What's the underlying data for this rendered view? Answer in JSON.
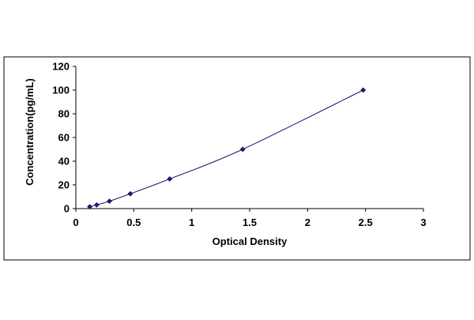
{
  "chart_data": {
    "type": "scatter",
    "title": "",
    "xlabel": "Optical Density",
    "ylabel": "Concentration(pg/mL)",
    "xlim": [
      0,
      3
    ],
    "ylim": [
      0,
      120
    ],
    "xticks": [
      0,
      0.5,
      1,
      1.5,
      2,
      2.5,
      3
    ],
    "xtick_labels": [
      "0",
      "0.5",
      "1",
      "1.5",
      "2",
      "2.5",
      "3"
    ],
    "yticks": [
      0,
      20,
      40,
      60,
      80,
      100,
      120
    ],
    "ytick_labels": [
      "0",
      "20",
      "40",
      "60",
      "80",
      "100",
      "120"
    ],
    "grid": false,
    "legend": false,
    "series": [
      {
        "points": [
          {
            "x": 0.12,
            "y": 1.56
          },
          {
            "x": 0.18,
            "y": 3.12
          },
          {
            "x": 0.29,
            "y": 6.25
          },
          {
            "x": 0.47,
            "y": 12.5
          },
          {
            "x": 0.81,
            "y": 25
          },
          {
            "x": 1.44,
            "y": 50
          },
          {
            "x": 2.48,
            "y": 100
          }
        ],
        "marker": "diamond",
        "marker_color": "#1a1a6e",
        "trendline": "smooth",
        "line_color": "#1a1a6e"
      }
    ]
  }
}
